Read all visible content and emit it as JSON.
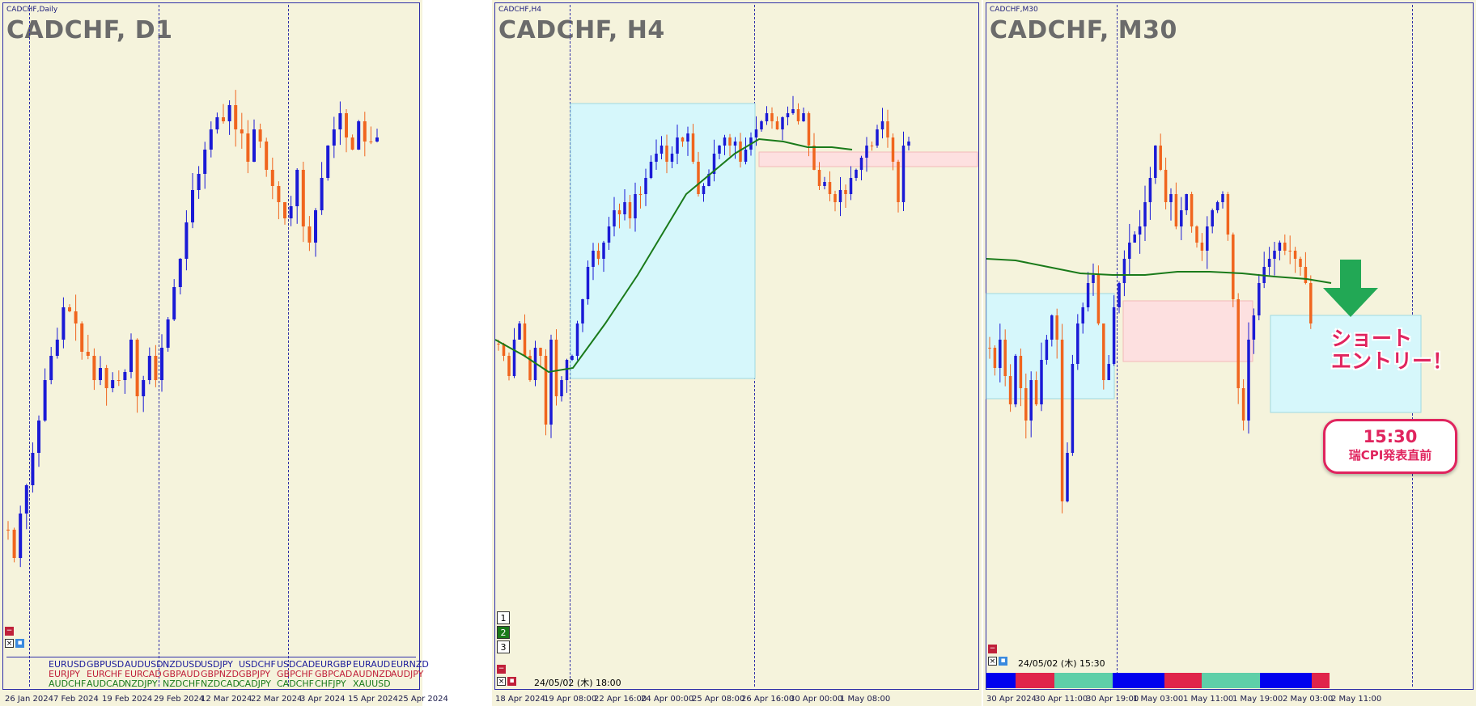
{
  "panels": [
    {
      "id": "d1",
      "small_title": "CADCHF,Daily",
      "big_title": "CADCHF, D1",
      "dates": [
        "26 Jan 2024",
        "7 Feb 2024",
        "19 Feb 2024",
        "29 Feb 2024",
        "12 Mar 2024",
        "22 Mar 2024",
        "3 Apr 2024",
        "15 Apr 2024",
        "25 Apr 2024"
      ]
    },
    {
      "id": "h4",
      "small_title": "CADCHF,H4",
      "big_title": "CADCHF, H4",
      "dates": [
        "18 Apr 2024",
        "19 Apr 08:00",
        "22 Apr 16:00",
        "24 Apr 00:00",
        "25 Apr 08:00",
        "26 Apr 16:00",
        "30 Apr 00:00",
        "1 May 08:00"
      ],
      "timeframes": [
        "1",
        "2",
        "3"
      ],
      "timestamp": "24/05/02 (木) 18:00"
    },
    {
      "id": "m30",
      "small_title": "CADCHF,M30",
      "big_title": "CADCHF, M30",
      "dates": [
        "30 Apr 2024",
        "30 Apr 11:00",
        "30 Apr 19:00",
        "1 May 03:00",
        "1 May 11:00",
        "1 May 19:00",
        "2 May 03:00",
        "2 May 11:00"
      ],
      "timestamp": "24/05/02 (木) 15:30"
    }
  ],
  "currency_pairs": {
    "row1": [
      "EURUSD",
      "GBPUSD",
      "AUDUSD",
      "NZDUSD",
      "USDJPY",
      "USDCHF",
      "USDCAD",
      "EURGBP",
      "EURAUD",
      "EURNZD"
    ],
    "row2": [
      "EURJPY",
      "EURCHF",
      "EURCAD",
      "GBPAUD",
      "GBPNZD",
      "GBPJPY",
      "GBPCHF",
      "GBPCAD",
      "AUDNZD",
      "AUDJPY"
    ],
    "row3": [
      "AUDCHF",
      "AUDCAD",
      "NZDJPY",
      "NZDCHF",
      "NZDCAD",
      "CADJPY",
      "CADCHF",
      "CHFJPY",
      "XAUUSD"
    ]
  },
  "annotation": {
    "callout_line1": "ショート",
    "callout_line2": "エントリー！",
    "bubble_time": "15:30",
    "bubble_text": "瑞CPI発表直前"
  },
  "colors": {
    "bull": "#1a1ad6",
    "bear": "#f0651e",
    "ma": "#1a7a1a",
    "zone_cyan": "#d6f7fb",
    "zone_pink": "#fde0e0",
    "arrow": "#22a855",
    "callout": "#e0245e"
  },
  "session_colors": [
    "#0000ee",
    "#e0244a",
    "#5ecfa8",
    "#0000ee",
    "#e0244a",
    "#5ecfa8",
    "#0000ee",
    "#e0244a"
  ]
}
